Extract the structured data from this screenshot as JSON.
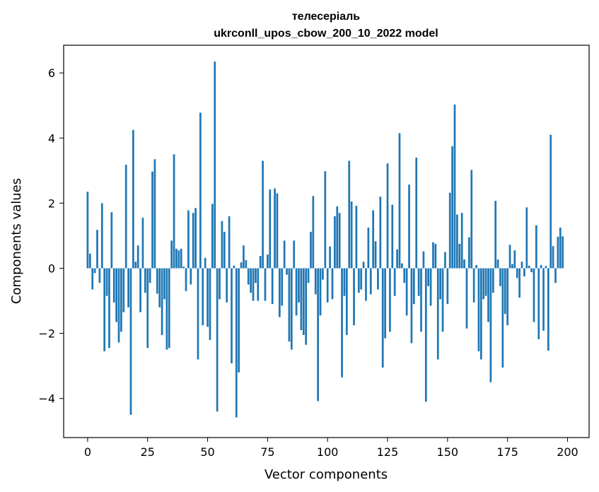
{
  "chart_data": {
    "type": "bar",
    "title_line1": "телесеріаль",
    "title_line2": "ukrconll_upos_cbow_200_10_2022 model",
    "xlabel": "Vector components",
    "ylabel": "Components values",
    "xlim": [
      -10,
      209
    ],
    "ylim": [
      -5.2,
      6.85
    ],
    "xticks": [
      0,
      25,
      50,
      75,
      100,
      125,
      150,
      175,
      200
    ],
    "yticks": [
      -4,
      -2,
      0,
      2,
      4,
      6
    ],
    "ytick_labels": [
      "−4",
      "−2",
      "0",
      "2",
      "4",
      "6"
    ],
    "bar_color": "#1f77b4",
    "grid": false,
    "values": [
      2.35,
      0.45,
      -0.65,
      -0.15,
      1.18,
      -0.45,
      2.0,
      -2.55,
      -0.85,
      -2.45,
      1.72,
      -1.05,
      -1.65,
      -2.28,
      -1.95,
      -1.35,
      3.18,
      -1.2,
      -4.5,
      4.25,
      0.2,
      0.7,
      -1.35,
      1.55,
      -0.75,
      -2.45,
      -0.45,
      2.97,
      3.35,
      -0.78,
      -1.2,
      -2.05,
      -0.95,
      -2.5,
      -2.45,
      0.85,
      3.5,
      0.6,
      0.55,
      0.6,
      0.05,
      -0.7,
      1.78,
      -0.5,
      1.7,
      1.85,
      -2.8,
      4.78,
      -1.75,
      0.32,
      -1.8,
      -2.2,
      1.98,
      6.35,
      -4.4,
      -0.95,
      1.45,
      1.12,
      -1.05,
      1.6,
      -2.92,
      0.08,
      -4.58,
      -3.2,
      0.18,
      0.7,
      0.25,
      -0.5,
      -0.75,
      -1.0,
      -0.45,
      -1.0,
      0.38,
      3.3,
      -1.0,
      0.42,
      2.42,
      -1.1,
      2.45,
      2.3,
      -1.5,
      -1.15,
      0.85,
      -0.2,
      -2.25,
      -2.5,
      0.85,
      -1.45,
      -1.05,
      -1.9,
      -2.05,
      -2.35,
      -0.45,
      1.12,
      2.22,
      -0.8,
      -4.08,
      -1.45,
      -0.35,
      2.98,
      -1.05,
      0.67,
      -0.95,
      1.6,
      1.9,
      1.7,
      -3.35,
      -0.85,
      -2.05,
      3.3,
      2.05,
      -1.75,
      1.92,
      -0.75,
      -0.65,
      0.2,
      -1.0,
      1.25,
      -0.8,
      1.78,
      0.83,
      -0.65,
      2.2,
      -3.05,
      -2.15,
      3.22,
      -1.95,
      1.95,
      -0.85,
      0.58,
      4.15,
      0.15,
      -0.45,
      -1.45,
      2.57,
      -2.3,
      -1.1,
      3.4,
      -0.85,
      -1.95,
      0.52,
      -4.1,
      -0.55,
      -1.15,
      0.8,
      0.75,
      -2.8,
      -0.95,
      -1.95,
      0.5,
      -1.1,
      2.32,
      3.75,
      5.03,
      1.65,
      0.75,
      1.7,
      0.27,
      -1.85,
      0.95,
      3.02,
      -1.05,
      0.1,
      -2.55,
      -2.8,
      -0.95,
      -0.85,
      -1.65,
      -3.5,
      -0.75,
      2.07,
      0.27,
      -0.55,
      -3.05,
      -1.4,
      -1.75,
      0.72,
      0.13,
      0.55,
      -0.3,
      -0.9,
      0.2,
      -0.25,
      1.87,
      0.08,
      -0.12,
      -1.65,
      1.32,
      -2.18,
      0.1,
      -1.92,
      0.07,
      -2.53,
      4.1,
      0.68,
      -0.45,
      0.97,
      1.25,
      0.98
    ]
  }
}
